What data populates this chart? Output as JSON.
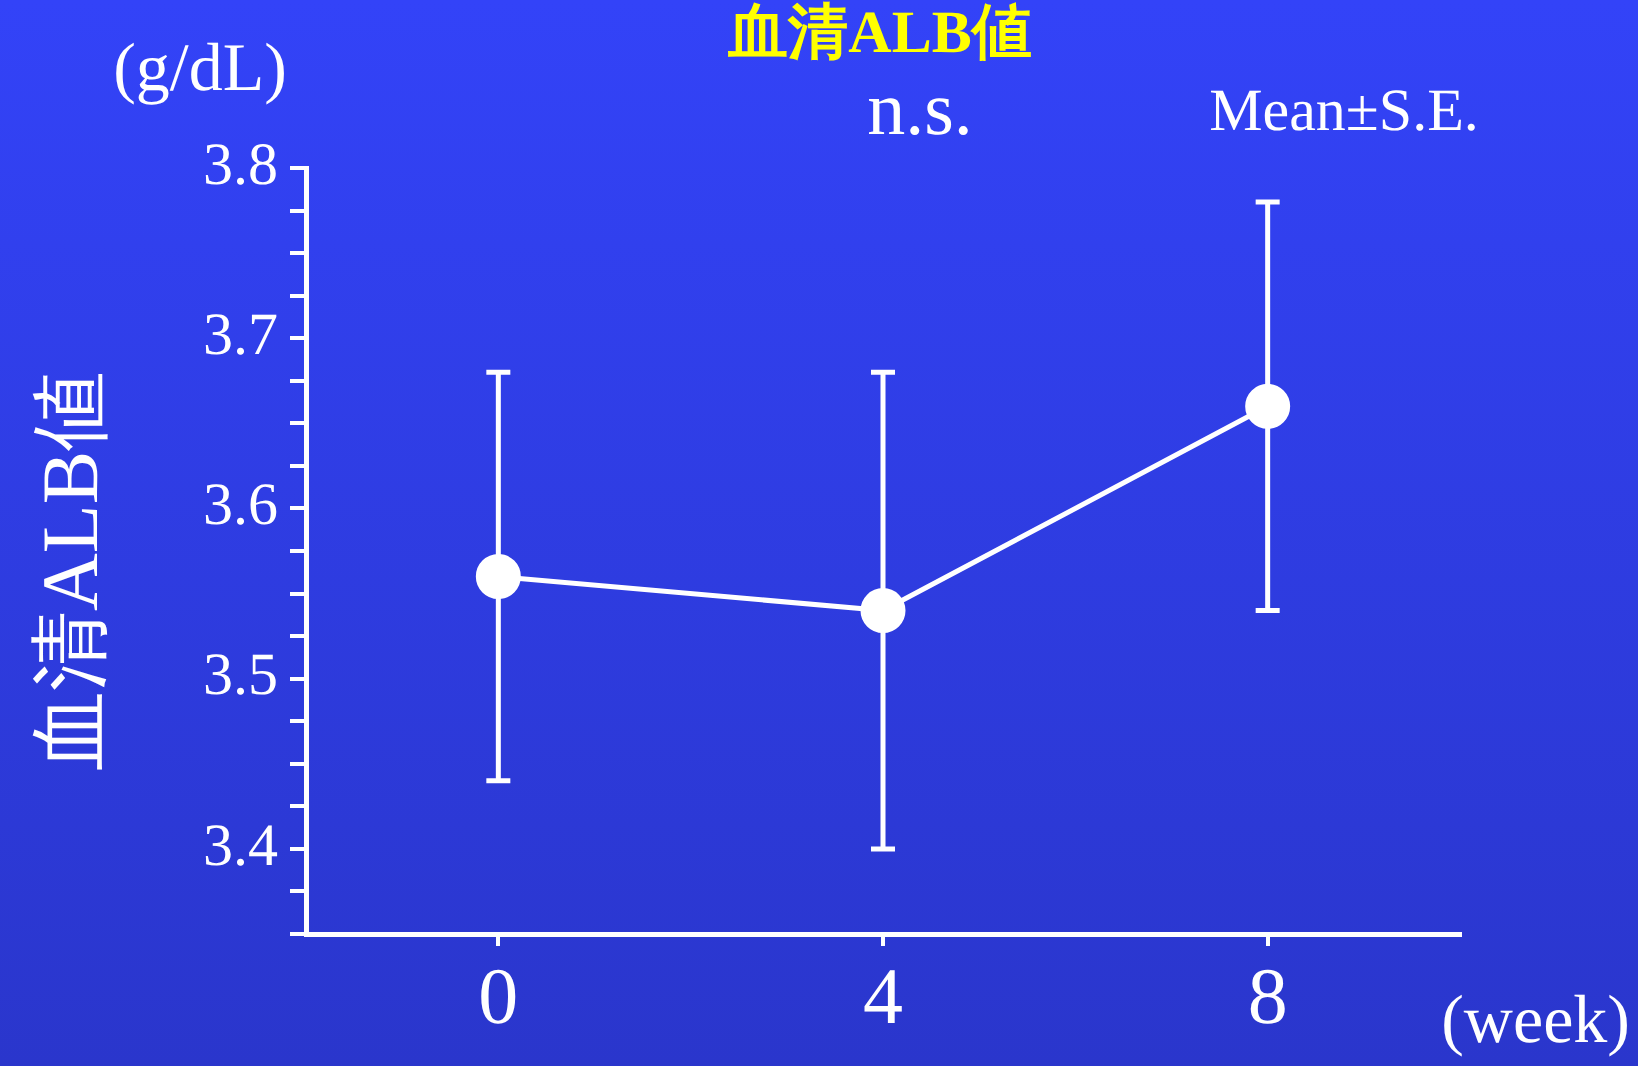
{
  "chart_data": {
    "type": "line",
    "title": "血清ALB値",
    "ylabel": "血清ALB値",
    "xlabel": "(week)",
    "annotations": [
      "(g/dL)",
      "n.s.",
      "Mean±S.E."
    ],
    "categories": [
      "0",
      "4",
      "8"
    ],
    "series": [
      {
        "color": "#ffffff",
        "values": [
          3.56,
          3.54,
          3.66
        ],
        "errors": [
          [
            3.44,
            3.68
          ],
          [
            3.4,
            3.68
          ],
          [
            3.54,
            3.78
          ]
        ]
      }
    ],
    "marker": "circle",
    "line_style": "solid",
    "ylim": [
      3.35,
      3.8
    ],
    "yticks": [
      {
        "value": 3.35,
        "label": null
      },
      {
        "value": 3.375,
        "label": null
      },
      3.4,
      {
        "value": 3.425,
        "label": null
      },
      {
        "value": 3.45,
        "label": null
      },
      {
        "value": 3.475,
        "label": null
      },
      3.5,
      {
        "value": 3.525,
        "label": null
      },
      {
        "value": 3.55,
        "label": null
      },
      {
        "value": 3.575,
        "label": null
      },
      3.6,
      {
        "value": 3.625,
        "label": null
      },
      {
        "value": 3.65,
        "label": null
      },
      {
        "value": 3.675,
        "label": null
      },
      3.7,
      {
        "value": 3.725,
        "label": null
      },
      {
        "value": 3.75,
        "label": null
      },
      {
        "value": 3.775,
        "label": null
      },
      3.8
    ]
  }
}
